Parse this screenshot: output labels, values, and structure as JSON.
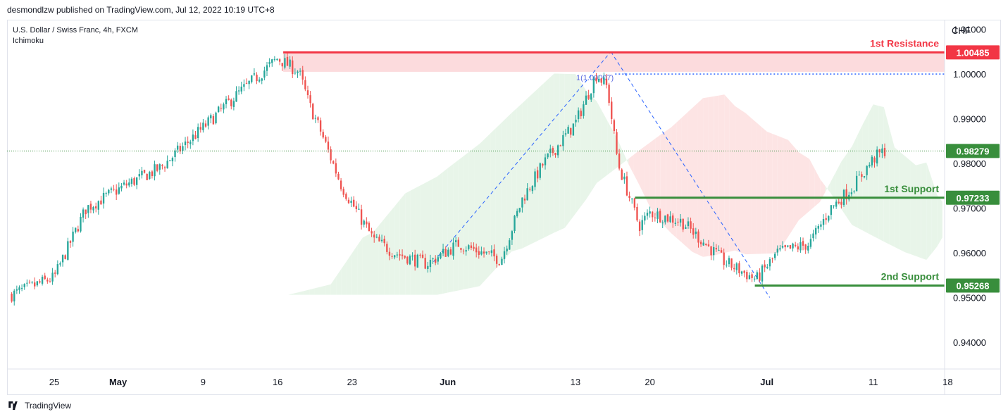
{
  "header": {
    "published": "desmondlzw published on TradingView.com, Jul 12, 2022 10:19 UTC+8"
  },
  "legend": {
    "symbol": "U.S. Dollar / Swiss Franc, 4h, FXCM",
    "indicator": "Ichimoku"
  },
  "footer": {
    "brand": "TradingView"
  },
  "chart_data": {
    "type": "candlestick",
    "currency": "CHF",
    "ylim": [
      0.934,
      1.012
    ],
    "y_ticks": [
      "1.01000",
      "1.00000",
      "0.99000",
      "0.98000",
      "0.97000",
      "0.96000",
      "0.95000",
      "0.94000"
    ],
    "x_ticks": [
      "25",
      "May",
      "9",
      "16",
      "23",
      "Jun",
      "13",
      "20",
      "Jul",
      "11",
      "18"
    ],
    "current_price": {
      "value": 0.98279,
      "label": "0.98279"
    },
    "levels": [
      {
        "name": "1st Resistance",
        "value": 1.00485,
        "label": "1.00485",
        "color": "#f23645"
      },
      {
        "name": "1st Support",
        "value": 0.97233,
        "label": "0.97233",
        "color": "#388e3c"
      },
      {
        "name": "2nd Support",
        "value": 0.95268,
        "label": "0.95268",
        "color": "#388e3c"
      }
    ],
    "resistance_zone": [
      1.00485,
      1.0005
    ],
    "fib_level": {
      "value": 1.0,
      "label": "1(1.00007)"
    },
    "colors": {
      "up": "#26a69a",
      "down": "#ef5350",
      "up_cloud": "#e8f5e9",
      "down_cloud": "#fde4e4",
      "trend": "#2962ff"
    },
    "anchors": [
      {
        "x": "Apr 21",
        "close": 0.9506
      },
      {
        "x": "Apr 25",
        "close": 0.9545
      },
      {
        "x": "Apr 28",
        "close": 0.97
      },
      {
        "x": "May 2",
        "close": 0.9755
      },
      {
        "x": "May 5",
        "close": 0.979
      },
      {
        "x": "May 9",
        "close": 0.988
      },
      {
        "x": "May 12",
        "close": 0.995
      },
      {
        "x": "May 16",
        "close": 1.0035
      },
      {
        "x": "May 18",
        "close": 1.0005
      },
      {
        "x": "May 19",
        "close": 0.993
      },
      {
        "x": "May 20",
        "close": 0.9875
      },
      {
        "x": "May 22",
        "close": 0.975
      },
      {
        "x": "May 23",
        "close": 0.971
      },
      {
        "x": "May 25",
        "close": 0.963
      },
      {
        "x": "May 27",
        "close": 0.96
      },
      {
        "x": "May 30",
        "close": 0.9575
      },
      {
        "x": "Jun 2",
        "close": 0.962
      },
      {
        "x": "Jun 6",
        "close": 0.9585
      },
      {
        "x": "Jun 8",
        "close": 0.972
      },
      {
        "x": "Jun 10",
        "close": 0.98
      },
      {
        "x": "Jun 13",
        "close": 0.989
      },
      {
        "x": "Jun 15",
        "close": 1.0
      },
      {
        "x": "Jun 16",
        "close": 0.997
      },
      {
        "x": "Jun 17",
        "close": 0.98
      },
      {
        "x": "Jun 19",
        "close": 0.966
      },
      {
        "x": "Jun 20",
        "close": 0.969
      },
      {
        "x": "Jun 23",
        "close": 0.967
      },
      {
        "x": "Jun 27",
        "close": 0.958
      },
      {
        "x": "Jun 30",
        "close": 0.954
      },
      {
        "x": "Jul 2",
        "close": 0.96
      },
      {
        "x": "Jul 5",
        "close": 0.962
      },
      {
        "x": "Jul 7",
        "close": 0.97
      },
      {
        "x": "Jul 9",
        "close": 0.9745
      },
      {
        "x": "Jul 11",
        "close": 0.981
      },
      {
        "x": "Jul 12",
        "close": 0.9828
      }
    ]
  }
}
